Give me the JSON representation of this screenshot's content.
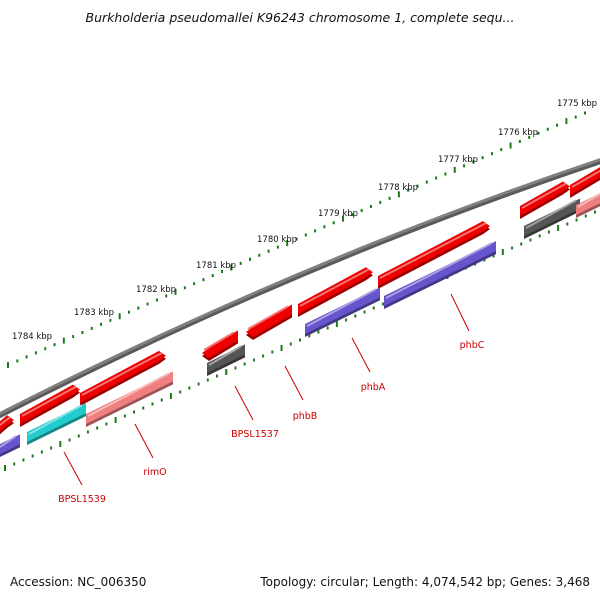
{
  "header": {
    "title": "Burkholderia pseudomallei K96243 chromosome 1, complete sequ..."
  },
  "footer": {
    "accession": "Accession: NC_006350",
    "summary": "Topology: circular; Length: 4,074,542 bp; Genes: 3,468"
  },
  "scale": {
    "unit": "kbp",
    "ticks": [
      {
        "kbp": 1775,
        "label": "1775 kbp"
      },
      {
        "kbp": 1776,
        "label": "1776 kbp"
      },
      {
        "kbp": 1777,
        "label": "1777 kbp"
      },
      {
        "kbp": 1778,
        "label": "1778 kbp"
      },
      {
        "kbp": 1779,
        "label": "1779 kbp"
      },
      {
        "kbp": 1780,
        "label": "1780 kbp"
      },
      {
        "kbp": 1781,
        "label": "1781 kbp"
      },
      {
        "kbp": 1782,
        "label": "1782 kbp"
      },
      {
        "kbp": 1783,
        "label": "1783 kbp"
      },
      {
        "kbp": 1784,
        "label": "1784 kbp"
      }
    ]
  },
  "gene_labels": [
    {
      "name": "BPSL1539"
    },
    {
      "name": "rimO"
    },
    {
      "name": "BPSL1537"
    },
    {
      "name": "phbB"
    },
    {
      "name": "phbA"
    },
    {
      "name": "phbC"
    }
  ],
  "colors": {
    "backbone": "#808080",
    "gene_forward": "#ee0000",
    "cds_blue": "#6655cc",
    "cds_pink": "#f08080",
    "cds_cyan": "#22cccc",
    "cds_gray": "#555555",
    "tick": "#1a7a1a",
    "label_line": "#cc0000"
  }
}
